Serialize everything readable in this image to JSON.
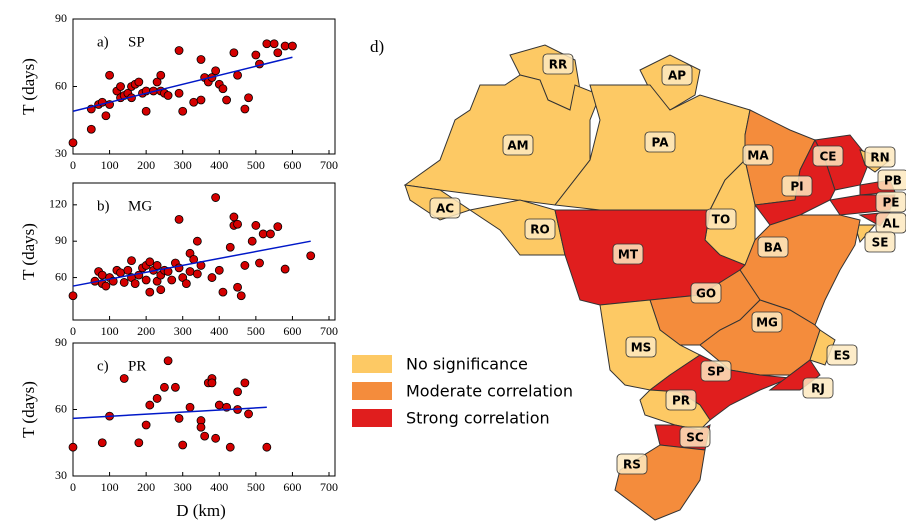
{
  "chart_data": [
    {
      "type": "scatter",
      "label": "a)",
      "title": "SP",
      "ylabel": "T (days)",
      "color": "#d40000",
      "x": [
        0,
        50,
        50,
        70,
        80,
        90,
        100,
        100,
        120,
        130,
        130,
        140,
        150,
        160,
        160,
        170,
        180,
        190,
        200,
        200,
        220,
        230,
        240,
        240,
        250,
        260,
        290,
        290,
        300,
        330,
        350,
        350,
        360,
        370,
        380,
        390,
        400,
        410,
        420,
        440,
        450,
        470,
        480,
        500,
        510,
        530,
        550,
        560,
        580,
        600
      ],
      "values": [
        35,
        41,
        50,
        52,
        53,
        47,
        65,
        52,
        58,
        55,
        60,
        56,
        57,
        60,
        55,
        61,
        62,
        57,
        49,
        58,
        58,
        62,
        65,
        58,
        57,
        56,
        76,
        57,
        49,
        53,
        54,
        72,
        64,
        62,
        64,
        67,
        61,
        59,
        54,
        75,
        65,
        50,
        55,
        74,
        70,
        79,
        79,
        75,
        78,
        78
      ],
      "fit": {
        "x": [
          0,
          600
        ],
        "values": [
          49,
          73
        ],
        "color": "#0018c8"
      },
      "xlim": [
        0,
        700
      ],
      "xticks": [
        0,
        100,
        200,
        300,
        400,
        500,
        600,
        700
      ],
      "ylim": [
        30,
        90
      ],
      "yticks": [
        30,
        60,
        90
      ]
    },
    {
      "type": "scatter",
      "label": "b)",
      "title": "MG",
      "ylabel": "T (days)",
      "color": "#d40000",
      "x": [
        0,
        60,
        70,
        80,
        80,
        90,
        100,
        110,
        120,
        130,
        140,
        150,
        160,
        160,
        170,
        180,
        190,
        200,
        200,
        210,
        210,
        220,
        230,
        230,
        240,
        240,
        250,
        260,
        270,
        280,
        290,
        290,
        300,
        310,
        320,
        320,
        330,
        340,
        340,
        350,
        380,
        390,
        400,
        410,
        430,
        440,
        440,
        450,
        450,
        460,
        470,
        490,
        500,
        510,
        520,
        540,
        560,
        580,
        650
      ],
      "values": [
        45,
        57,
        65,
        55,
        62,
        53,
        60,
        57,
        66,
        64,
        56,
        66,
        74,
        60,
        55,
        62,
        68,
        70,
        58,
        73,
        48,
        66,
        70,
        57,
        62,
        50,
        66,
        65,
        58,
        72,
        108,
        68,
        60,
        55,
        80,
        65,
        75,
        90,
        63,
        70,
        60,
        126,
        66,
        48,
        85,
        110,
        103,
        52,
        104,
        45,
        70,
        90,
        103,
        72,
        96,
        96,
        102,
        67,
        78
      ],
      "fit": {
        "x": [
          0,
          650
        ],
        "values": [
          53,
          90
        ],
        "color": "#0018c8"
      },
      "xlim": [
        0,
        700
      ],
      "xticks": [
        0,
        100,
        200,
        300,
        400,
        500,
        600,
        700
      ],
      "ylim": [
        25,
        138
      ],
      "yticks": [
        60,
        90,
        120
      ]
    },
    {
      "type": "scatter",
      "label": "c)",
      "title": "PR",
      "ylabel": "T (days)",
      "xlabel": "D (km)",
      "color": "#d40000",
      "x": [
        0,
        80,
        100,
        140,
        180,
        200,
        210,
        230,
        250,
        260,
        280,
        290,
        300,
        320,
        350,
        350,
        360,
        370,
        380,
        380,
        390,
        400,
        420,
        430,
        450,
        450,
        470,
        480,
        530
      ],
      "values": [
        43,
        45,
        57,
        74,
        45,
        53,
        62,
        65,
        70,
        82,
        70,
        56,
        44,
        61,
        55,
        52,
        48,
        72,
        74,
        72,
        47,
        62,
        61,
        43,
        68,
        60,
        72,
        58,
        43
      ],
      "fit": {
        "x": [
          0,
          530
        ],
        "values": [
          56,
          61
        ],
        "color": "#0018c8"
      },
      "xlim": [
        0,
        700
      ],
      "xticks": [
        0,
        100,
        200,
        300,
        400,
        500,
        600,
        700
      ],
      "ylim": [
        30,
        90
      ],
      "yticks": [
        30,
        60,
        90
      ]
    }
  ],
  "map": {
    "label": "d)",
    "legend": [
      {
        "label": "No significance",
        "color": "#fdc964"
      },
      {
        "label": "Moderate correlation",
        "color": "#f48c3c"
      },
      {
        "label": "Strong correlation",
        "color": "#e01e1e"
      }
    ],
    "states": [
      {
        "label": "RR",
        "category": 0
      },
      {
        "label": "AP",
        "category": 0
      },
      {
        "label": "AM",
        "category": 0
      },
      {
        "label": "PA",
        "category": 0
      },
      {
        "label": "MA",
        "category": 1
      },
      {
        "label": "CE",
        "category": 2
      },
      {
        "label": "RN",
        "category": 0
      },
      {
        "label": "PB",
        "category": 2
      },
      {
        "label": "PE",
        "category": 2
      },
      {
        "label": "AL",
        "category": 2
      },
      {
        "label": "SE",
        "category": 0
      },
      {
        "label": "PI",
        "category": 2
      },
      {
        "label": "AC",
        "category": 0
      },
      {
        "label": "RO",
        "category": 0
      },
      {
        "label": "TO",
        "category": 0
      },
      {
        "label": "MT",
        "category": 2
      },
      {
        "label": "BA",
        "category": 1
      },
      {
        "label": "GO",
        "category": 1
      },
      {
        "label": "MG",
        "category": 1
      },
      {
        "label": "ES",
        "category": 0
      },
      {
        "label": "MS",
        "category": 0
      },
      {
        "label": "SP",
        "category": 2
      },
      {
        "label": "RJ",
        "category": 2
      },
      {
        "label": "PR",
        "category": 0
      },
      {
        "label": "SC",
        "category": 2
      },
      {
        "label": "RS",
        "category": 1
      }
    ]
  }
}
